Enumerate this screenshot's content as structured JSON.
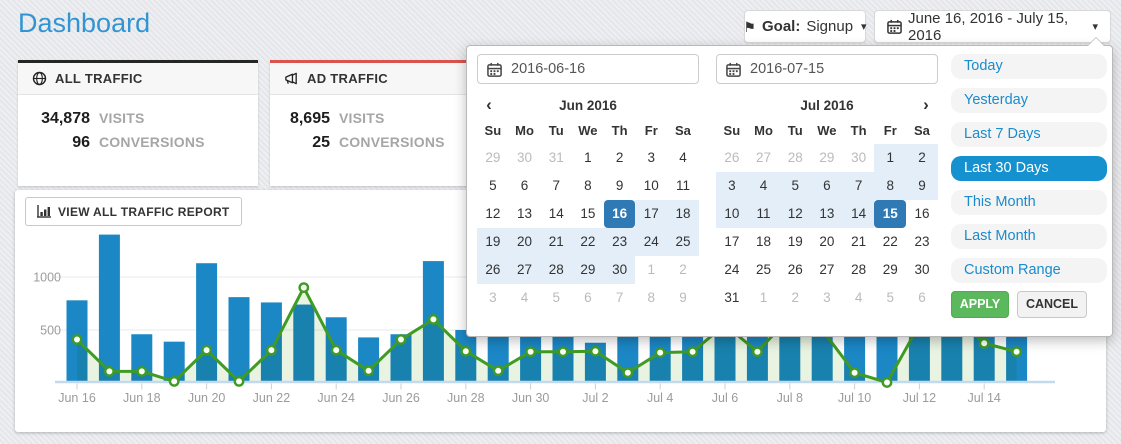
{
  "page": {
    "title": "Dashboard"
  },
  "icons": {
    "flag": "⚑",
    "caret": "▾",
    "prev": "‹",
    "next": "›"
  },
  "header": {
    "goal_button": {
      "label_prefix": "Goal:",
      "value": "Signup"
    },
    "date_button": {
      "label": "June 16, 2016 - July 15, 2016"
    }
  },
  "cards": [
    {
      "title": "ALL TRAFFIC",
      "accent": "#262626",
      "icon": "globe-icon",
      "metrics": [
        {
          "value": "34,878",
          "label": "VISITS"
        },
        {
          "value": "96",
          "label": "CONVERSIONS"
        }
      ]
    },
    {
      "title": "AD TRAFFIC",
      "accent": "#d9534f",
      "icon": "megaphone-icon",
      "metrics": [
        {
          "value": "8,695",
          "label": "VISITS"
        },
        {
          "value": "25",
          "label": "CONVERSIONS"
        }
      ]
    }
  ],
  "view_report_button": {
    "label": "VIEW ALL TRAFFIC REPORT"
  },
  "datepicker": {
    "inputs": [
      {
        "value": "2016-06-16"
      },
      {
        "value": "2016-07-15"
      }
    ],
    "calendars": [
      {
        "title": "Jun 2016",
        "nav": "prev",
        "weekdays": [
          "Su",
          "Mo",
          "Tu",
          "We",
          "Th",
          "Fr",
          "Sa"
        ],
        "cells": [
          [
            "29",
            "out"
          ],
          [
            "30",
            "out"
          ],
          [
            "31",
            "out"
          ],
          [
            "1",
            ""
          ],
          [
            "2",
            ""
          ],
          [
            "3",
            ""
          ],
          [
            "4",
            ""
          ],
          [
            "5",
            ""
          ],
          [
            "6",
            ""
          ],
          [
            "7",
            ""
          ],
          [
            "8",
            ""
          ],
          [
            "9",
            ""
          ],
          [
            "10",
            ""
          ],
          [
            "11",
            ""
          ],
          [
            "12",
            ""
          ],
          [
            "13",
            ""
          ],
          [
            "14",
            ""
          ],
          [
            "15",
            ""
          ],
          [
            "16",
            "active"
          ],
          [
            "17",
            "range"
          ],
          [
            "18",
            "range"
          ],
          [
            "19",
            "range"
          ],
          [
            "20",
            "range"
          ],
          [
            "21",
            "range"
          ],
          [
            "22",
            "range"
          ],
          [
            "23",
            "range"
          ],
          [
            "24",
            "range"
          ],
          [
            "25",
            "range"
          ],
          [
            "26",
            "range"
          ],
          [
            "27",
            "range"
          ],
          [
            "28",
            "range"
          ],
          [
            "29",
            "range"
          ],
          [
            "30",
            "range"
          ],
          [
            "1",
            "out"
          ],
          [
            "2",
            "out"
          ],
          [
            "3",
            "out"
          ],
          [
            "4",
            "out"
          ],
          [
            "5",
            "out"
          ],
          [
            "6",
            "out"
          ],
          [
            "7",
            "out"
          ],
          [
            "8",
            "out"
          ],
          [
            "9",
            "out"
          ]
        ]
      },
      {
        "title": "Jul 2016",
        "nav": "next",
        "weekdays": [
          "Su",
          "Mo",
          "Tu",
          "We",
          "Th",
          "Fr",
          "Sa"
        ],
        "cells": [
          [
            "26",
            "out"
          ],
          [
            "27",
            "out"
          ],
          [
            "28",
            "out"
          ],
          [
            "29",
            "out"
          ],
          [
            "30",
            "out"
          ],
          [
            "1",
            "range"
          ],
          [
            "2",
            "range"
          ],
          [
            "3",
            "range"
          ],
          [
            "4",
            "range"
          ],
          [
            "5",
            "range"
          ],
          [
            "6",
            "range"
          ],
          [
            "7",
            "range"
          ],
          [
            "8",
            "range"
          ],
          [
            "9",
            "range"
          ],
          [
            "10",
            "range"
          ],
          [
            "11",
            "range"
          ],
          [
            "12",
            "range"
          ],
          [
            "13",
            "range"
          ],
          [
            "14",
            "range"
          ],
          [
            "15",
            "active"
          ],
          [
            "16",
            ""
          ],
          [
            "17",
            ""
          ],
          [
            "18",
            ""
          ],
          [
            "19",
            ""
          ],
          [
            "20",
            ""
          ],
          [
            "21",
            ""
          ],
          [
            "22",
            ""
          ],
          [
            "23",
            ""
          ],
          [
            "24",
            ""
          ],
          [
            "25",
            ""
          ],
          [
            "26",
            ""
          ],
          [
            "27",
            ""
          ],
          [
            "28",
            ""
          ],
          [
            "29",
            ""
          ],
          [
            "30",
            ""
          ],
          [
            "31",
            ""
          ],
          [
            "1",
            "out"
          ],
          [
            "2",
            "out"
          ],
          [
            "3",
            "out"
          ],
          [
            "4",
            "out"
          ],
          [
            "5",
            "out"
          ],
          [
            "6",
            "out"
          ]
        ]
      }
    ],
    "ranges": [
      {
        "label": "Today"
      },
      {
        "label": "Yesterday"
      },
      {
        "label": "Last 7 Days"
      },
      {
        "label": "Last 30 Days",
        "selected": true
      },
      {
        "label": "This Month"
      },
      {
        "label": "Last Month"
      },
      {
        "label": "Custom Range"
      }
    ],
    "apply_label": "APPLY",
    "cancel_label": "CANCEL"
  },
  "chart_data": {
    "type": "bar+line",
    "x": [
      "Jun 16",
      "Jun 17",
      "Jun 18",
      "Jun 19",
      "Jun 20",
      "Jun 21",
      "Jun 22",
      "Jun 23",
      "Jun 24",
      "Jun 25",
      "Jun 26",
      "Jun 27",
      "Jun 28",
      "Jun 29",
      "Jun 30",
      "Jul 1",
      "Jul 2",
      "Jul 3",
      "Jul 4",
      "Jul 5",
      "Jul 6",
      "Jul 7",
      "Jul 8",
      "Jul 9",
      "Jul 10",
      "Jul 11",
      "Jul 12",
      "Jul 13",
      "Jul 14",
      "Jul 15"
    ],
    "bars": {
      "label": "visits",
      "color": "#1b87c5",
      "values": [
        780,
        1400,
        460,
        390,
        1130,
        810,
        760,
        740,
        620,
        430,
        460,
        1150,
        500,
        470,
        900,
        640,
        380,
        650,
        720,
        800,
        760,
        700,
        650,
        600,
        560,
        680,
        720,
        650,
        600,
        450
      ]
    },
    "line": {
      "label": "conversions",
      "color": "#3f9b23",
      "point_fill": "#fbfdf9",
      "area_color": "#e9f3e1",
      "values": [
        410,
        110,
        110,
        15,
        310,
        15,
        310,
        900,
        310,
        115,
        410,
        600,
        300,
        115,
        295,
        295,
        300,
        97,
        287,
        295,
        550,
        295,
        620,
        500,
        97,
        5,
        550,
        650,
        375,
        295
      ]
    },
    "ylim": [
      0,
      1500
    ],
    "yticks": [
      500,
      1000
    ],
    "xtick_every": 2,
    "grid": "horizontal-only",
    "legend": "none",
    "tick_color": "#9b9b9b",
    "baseline_color": "#c3daee"
  }
}
